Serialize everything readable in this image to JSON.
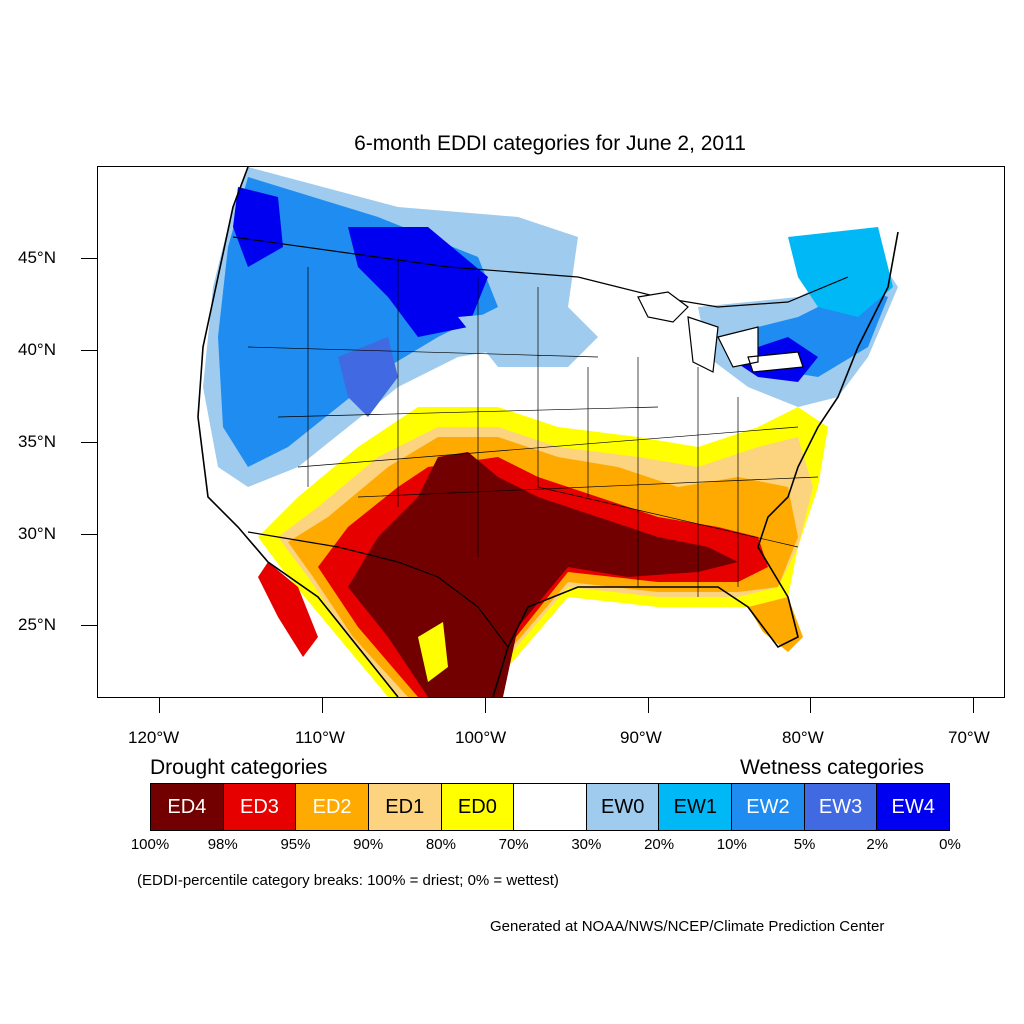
{
  "title": "6-month EDDI categories for June 2, 2011",
  "lat_labels": [
    "45°N",
    "40°N",
    "35°N",
    "30°N",
    "25°N"
  ],
  "lon_labels": [
    "120°W",
    "110°W",
    "100°W",
    "90°W",
    "80°W",
    "70°W"
  ],
  "legend": {
    "drought_heading": "Drought categories",
    "wetness_heading": "Wetness categories",
    "categories": [
      {
        "label": "ED4",
        "color": "#730000",
        "text_color": "#ffffff"
      },
      {
        "label": "ED3",
        "color": "#e60000",
        "text_color": "#ffffff"
      },
      {
        "label": "ED2",
        "color": "#ffaa00",
        "text_color": "#ffffff"
      },
      {
        "label": "ED1",
        "color": "#fcd37f",
        "text_color": "#000000"
      },
      {
        "label": "ED0",
        "color": "#ffff00",
        "text_color": "#000000"
      },
      {
        "label": "",
        "color": "#ffffff",
        "text_color": "#000000"
      },
      {
        "label": "EW0",
        "color": "#9ecbee",
        "text_color": "#000000"
      },
      {
        "label": "EW1",
        "color": "#00b8f5",
        "text_color": "#000000"
      },
      {
        "label": "EW2",
        "color": "#1e8cf0",
        "text_color": "#ffffff"
      },
      {
        "label": "EW3",
        "color": "#4169e1",
        "text_color": "#ffffff"
      },
      {
        "label": "EW4",
        "color": "#0000f0",
        "text_color": "#ffffff"
      }
    ],
    "percentiles": [
      "100%",
      "98%",
      "95%",
      "90%",
      "80%",
      "70%",
      "30%",
      "20%",
      "10%",
      "5%",
      "2%",
      "0%"
    ]
  },
  "note": "(EDDI-percentile category breaks: 100% = driest; 0% = wettest)",
  "credit": "Generated at NOAA/NWS/NCEP/Climate Prediction Center"
}
